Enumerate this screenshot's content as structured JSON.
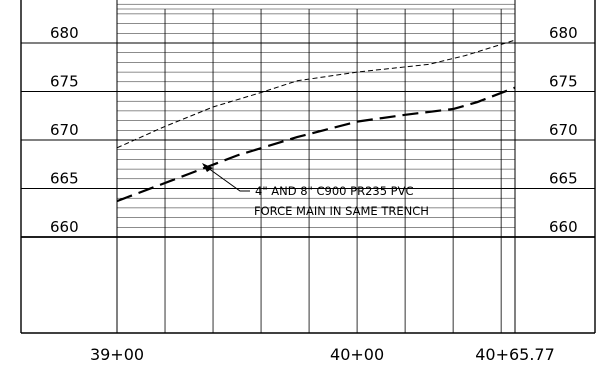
{
  "profile": {
    "elevations_left": [
      {
        "value": "680",
        "elev": 680
      },
      {
        "value": "675",
        "elev": 675
      },
      {
        "value": "670",
        "elev": 670
      },
      {
        "value": "665",
        "elev": 665
      },
      {
        "value": "660",
        "elev": 660
      }
    ],
    "elevations_right": [
      {
        "value": "680",
        "elev": 680
      },
      {
        "value": "675",
        "elev": 675
      },
      {
        "value": "670",
        "elev": 670
      },
      {
        "value": "665",
        "elev": 665
      },
      {
        "value": "660",
        "elev": 660
      }
    ],
    "stations": [
      {
        "label": "39+00",
        "sta": 3900
      },
      {
        "label": "40+00",
        "sta": 4000
      },
      {
        "label": "40+65.77",
        "sta": 4065.77
      }
    ],
    "note": {
      "line1": "4\" AND 8\" C900 PR235 PVC",
      "line2": "FORCE MAIN IN SAME TRENCH"
    },
    "ground_profile": [
      [
        3900,
        669.2
      ],
      [
        3920,
        671.4
      ],
      [
        3940,
        673.4
      ],
      [
        3960,
        674.9
      ],
      [
        3975,
        676.1
      ],
      [
        4000,
        677.0
      ],
      [
        4030,
        677.8
      ],
      [
        4045,
        678.7
      ],
      [
        4065.77,
        680.3
      ]
    ],
    "pipe_profile": [
      [
        3900,
        663.7
      ],
      [
        3930,
        666.5
      ],
      [
        3950,
        668.4
      ],
      [
        3975,
        670.3
      ],
      [
        4000,
        671.9
      ],
      [
        4020,
        672.6
      ],
      [
        4040,
        673.2
      ],
      [
        4050,
        673.9
      ],
      [
        4065.77,
        675.4
      ]
    ],
    "colors": {
      "line": "#000000",
      "grid": "#000000",
      "background": "#ffffff"
    }
  }
}
